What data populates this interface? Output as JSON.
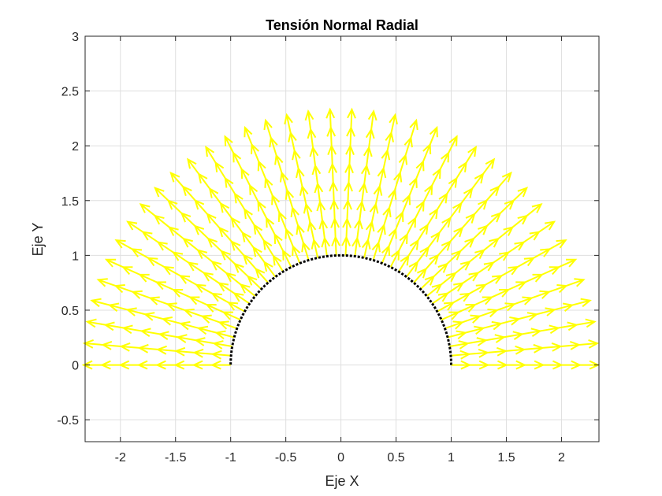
{
  "chart_data": {
    "type": "quiver",
    "title": "Tensión Normal Radial",
    "xlabel": "Eje X",
    "ylabel": "Eje Y",
    "xlim": [
      -2.32,
      2.34
    ],
    "ylim": [
      -0.7,
      3
    ],
    "xticks": [
      -2,
      -1.5,
      -1,
      -0.5,
      0,
      0.5,
      1,
      1.5,
      2
    ],
    "xtick_labels": [
      "-2",
      "-1.5",
      "-1",
      "-0.5",
      "0",
      "0.5",
      "1",
      "1.5",
      "2"
    ],
    "yticks": [
      -0.5,
      0,
      0.5,
      1,
      1.5,
      2,
      2.5,
      3
    ],
    "ytick_labels": [
      "-0.5",
      "0",
      "0.5",
      "1",
      "1.5",
      "2",
      "2.5",
      "3"
    ],
    "grid": true,
    "vector_field": {
      "description_of_field": "radial",
      "angle_range_deg": [
        0,
        180
      ],
      "angle_count": 38,
      "radius_start": 1,
      "radius_step": 0.1667,
      "radius_count": 8,
      "arrow_length": 0.1667,
      "color": "#ffff00"
    },
    "boundary": {
      "radius": 1,
      "angle_range_deg": [
        0,
        180
      ],
      "color": "#000000",
      "style": "dotted"
    }
  }
}
